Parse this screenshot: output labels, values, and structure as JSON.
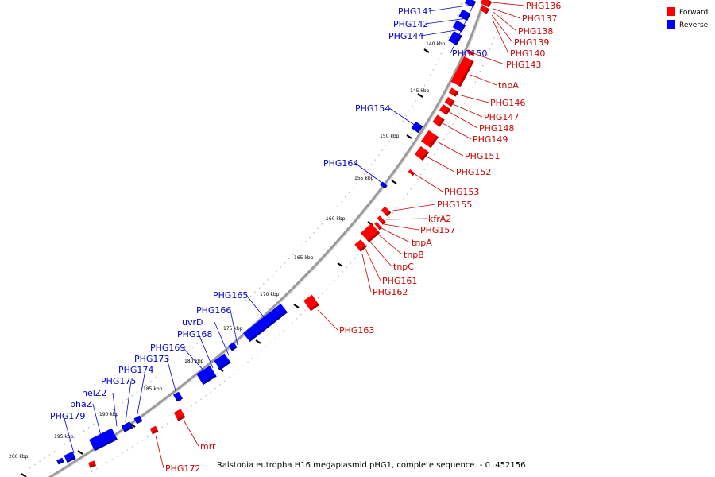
{
  "caption": "Ralstonia eutropha H16 megaplasmid pHG1, complete sequence. - 0..452156",
  "legend": [
    {
      "label": "Forward",
      "color": "#ff0000"
    },
    {
      "label": "Reverse",
      "color": "#0000ff"
    }
  ],
  "colors": {
    "forward": "#ff0000",
    "reverse": "#0000ff",
    "forward_text": "#cc0000",
    "reverse_text": "#0000cc"
  },
  "ticks": [
    "140 kbp",
    "145 kbp",
    "150 kbp",
    "155 kbp",
    "160 kbp",
    "165 kbp",
    "170 kbp",
    "175 kbp",
    "180 kbp",
    "185 kbp",
    "190 kbp",
    "195 kbp",
    "200 kbp"
  ],
  "forward_genes": [
    "PHG136",
    "PHG137",
    "PHG138",
    "PHG139",
    "PHG140",
    "PHG143",
    "tnpA",
    "PHG146",
    "PHG147",
    "PHG148",
    "PHG149",
    "PHG151",
    "PHG152",
    "PHG153",
    "PHG155",
    "kfrA2",
    "PHG157",
    "tnpA",
    "tnpB",
    "tnpC",
    "PHG161",
    "PHG162",
    "PHG163",
    "mrr",
    "PHG172"
  ],
  "reverse_genes": [
    "PHG141",
    "PHG142",
    "PHG144",
    "PHG150",
    "PHG154",
    "PHG164",
    "PHG165",
    "PHG166",
    "uvrD",
    "PHG168",
    "PHG169",
    "PHG173",
    "PHG174",
    "PHG175",
    "helZ2",
    "phaZ",
    "PHG179"
  ]
}
